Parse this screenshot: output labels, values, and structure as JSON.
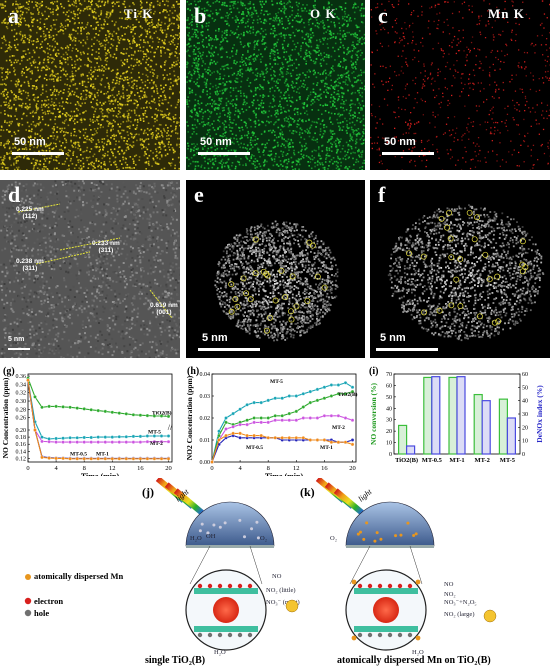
{
  "row1": {
    "a": {
      "letter": "a",
      "element": "Ti  K",
      "scale": "50 nm",
      "color": "#e6d21e"
    },
    "b": {
      "letter": "b",
      "element": "O  K",
      "scale": "50 nm",
      "color": "#22c83a"
    },
    "c": {
      "letter": "c",
      "element": "Mn  K",
      "scale": "50 nm",
      "color": "#e0201e"
    }
  },
  "row2": {
    "d": {
      "letter": "d",
      "scale": "5 nm",
      "annotations": [
        {
          "line1": "0.225 nm",
          "line2": "(112)"
        },
        {
          "line1": "0.233 nm",
          "line2": "(311)"
        },
        {
          "line1": "0.238 nm",
          "line2": "(311)"
        },
        {
          "line1": "0.619 nm",
          "line2": "(001)"
        }
      ]
    },
    "e": {
      "letter": "e",
      "scale": "5 nm"
    },
    "f": {
      "letter": "f",
      "scale": "5 nm"
    }
  },
  "chart_data": [
    {
      "panel": "(g)",
      "type": "line",
      "xlabel": "Time (min)",
      "ylabel": "NO Concentration (ppm)",
      "xticks": [
        0,
        4,
        8,
        12,
        16,
        20
      ],
      "yticks_upper": [
        0.26,
        0.28,
        0.3,
        0.32,
        0.34,
        0.36
      ],
      "yticks_lower": [
        0.12,
        0.14,
        0.16,
        0.18,
        0.2
      ],
      "axis_break": "0.20 to 0.24 (shown as 0.24)",
      "x": [
        0,
        1,
        2,
        3,
        4,
        5,
        6,
        7,
        8,
        9,
        10,
        11,
        12,
        13,
        14,
        15,
        16,
        17,
        18,
        19,
        20
      ],
      "series": [
        {
          "name": "TiO2(B)",
          "color": "#2eaa2e",
          "values": [
            0.355,
            0.31,
            0.285,
            0.287,
            0.287,
            0.286,
            0.285,
            0.283,
            0.281,
            0.279,
            0.277,
            0.275,
            0.273,
            0.271,
            0.269,
            0.267,
            0.266,
            0.265,
            0.264,
            0.264,
            0.263
          ]
        },
        {
          "name": "MT-5",
          "color": "#19a5b5",
          "values": [
            0.35,
            0.25,
            0.18,
            0.175,
            0.176,
            0.177,
            0.178,
            0.178,
            0.179,
            0.179,
            0.18,
            0.18,
            0.18,
            0.181,
            0.181,
            0.182,
            0.182,
            0.183,
            0.183,
            0.183,
            0.183
          ]
        },
        {
          "name": "MT-2",
          "color": "#cc55e0",
          "values": [
            0.35,
            0.22,
            0.168,
            0.167,
            0.166,
            0.166,
            0.166,
            0.166,
            0.166,
            0.166,
            0.166,
            0.166,
            0.166,
            0.166,
            0.166,
            0.166,
            0.166,
            0.167,
            0.167,
            0.167,
            0.167
          ]
        },
        {
          "name": "MT-0.5",
          "color": "#2323b8",
          "values": [
            0.35,
            0.2,
            0.125,
            0.122,
            0.121,
            0.121,
            0.12,
            0.12,
            0.12,
            0.12,
            0.12,
            0.12,
            0.12,
            0.12,
            0.12,
            0.12,
            0.12,
            0.12,
            0.12,
            0.12,
            0.12
          ]
        },
        {
          "name": "MT-1",
          "color": "#f08a1a",
          "values": [
            0.35,
            0.2,
            0.123,
            0.121,
            0.12,
            0.12,
            0.119,
            0.119,
            0.119,
            0.119,
            0.119,
            0.119,
            0.119,
            0.119,
            0.119,
            0.119,
            0.119,
            0.119,
            0.119,
            0.119,
            0.119
          ]
        }
      ]
    },
    {
      "panel": "(h)",
      "type": "line",
      "xlabel": "Time (min)",
      "ylabel": "NO2 Concentration (ppm)",
      "xticks": [
        0,
        4,
        8,
        12,
        16,
        20
      ],
      "yticks": [
        0.0,
        0.01,
        0.02,
        0.03,
        0.04
      ],
      "ylim": [
        0,
        0.04
      ],
      "x": [
        0,
        1,
        2,
        3,
        4,
        5,
        6,
        7,
        8,
        9,
        10,
        11,
        12,
        13,
        14,
        15,
        16,
        17,
        18,
        19,
        20
      ],
      "series": [
        {
          "name": "MT-5",
          "color": "#19a5b5",
          "values": [
            0.0,
            0.014,
            0.02,
            0.022,
            0.024,
            0.026,
            0.027,
            0.027,
            0.028,
            0.029,
            0.029,
            0.03,
            0.03,
            0.031,
            0.032,
            0.033,
            0.034,
            0.035,
            0.035,
            0.036,
            0.034
          ]
        },
        {
          "name": "TiO2(B)",
          "color": "#2eaa2e",
          "values": [
            0.0,
            0.012,
            0.018,
            0.017,
            0.018,
            0.019,
            0.02,
            0.02,
            0.02,
            0.021,
            0.021,
            0.022,
            0.023,
            0.025,
            0.027,
            0.028,
            0.029,
            0.03,
            0.031,
            0.031,
            0.032
          ]
        },
        {
          "name": "MT-2",
          "color": "#cc55e0",
          "values": [
            0.0,
            0.01,
            0.015,
            0.016,
            0.017,
            0.017,
            0.018,
            0.018,
            0.018,
            0.019,
            0.019,
            0.019,
            0.019,
            0.02,
            0.02,
            0.02,
            0.021,
            0.021,
            0.021,
            0.02,
            0.019
          ]
        },
        {
          "name": "MT-0.5",
          "color": "#2323b8",
          "values": [
            0.0,
            0.008,
            0.011,
            0.012,
            0.011,
            0.011,
            0.011,
            0.011,
            0.011,
            0.011,
            0.01,
            0.01,
            0.01,
            0.01,
            0.01,
            0.01,
            0.01,
            0.01,
            0.009,
            0.009,
            0.01
          ]
        },
        {
          "name": "MT-1",
          "color": "#f08a1a",
          "values": [
            0.0,
            0.01,
            0.012,
            0.013,
            0.013,
            0.012,
            0.012,
            0.012,
            0.011,
            0.011,
            0.011,
            0.011,
            0.011,
            0.011,
            0.01,
            0.01,
            0.01,
            0.009,
            0.009,
            0.009,
            0.008
          ]
        }
      ]
    },
    {
      "panel": "(i)",
      "type": "bar",
      "categories": [
        "TiO2(B)",
        "MT-0.5",
        "MT-1",
        "MT-2",
        "MT-5"
      ],
      "ylabel_left": "NO conversion (%)",
      "ylabel_right": "DeNOx index (%)",
      "ylim_left": [
        0,
        70
      ],
      "ylim_right": [
        0,
        60
      ],
      "yticks_left": [
        0,
        10,
        20,
        30,
        40,
        50,
        60,
        70
      ],
      "yticks_right": [
        0,
        10,
        20,
        30,
        40,
        50,
        60
      ],
      "series": [
        {
          "name": "NO conversion",
          "axis": "left",
          "color": "#3cbf3c",
          "values": [
            25,
            67,
            67,
            52,
            48
          ]
        },
        {
          "name": "DeNOx index",
          "axis": "right",
          "color": "#4a4ae0",
          "values": [
            6,
            58,
            58,
            40,
            27
          ]
        }
      ]
    }
  ],
  "schematic": {
    "j": {
      "letter": "(j)",
      "caption": "single TiO₂(B)",
      "light": "light",
      "species": [
        "H₂O",
        "OH",
        "NO",
        "NO₂ (little)",
        "NO₃⁻ (most)",
        "H₂O",
        "O₂"
      ]
    },
    "k": {
      "letter": "(k)",
      "caption": "atomically dispersed Mn on TiO₂(B)",
      "light": "light",
      "species": [
        "NO",
        "NO₂",
        "NO₃⁻+N₂O₅",
        "NO₂ (large)",
        "H₂O",
        "O₂"
      ]
    },
    "legend": [
      {
        "label": "atomically dispersed Mn",
        "color": "#e8961e"
      },
      {
        "label": "electron",
        "color": "#d8201e"
      },
      {
        "label": "hole",
        "color": "#707070"
      }
    ]
  }
}
